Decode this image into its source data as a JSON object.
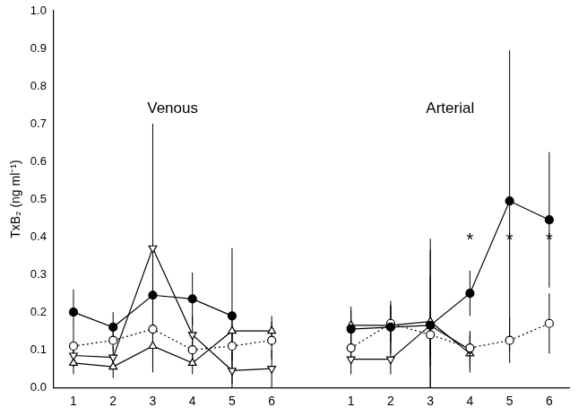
{
  "chart_data": {
    "type": "line",
    "y_label": "TxB₂ (ng ml⁻¹)",
    "categories": [
      "1",
      "2",
      "3",
      "4",
      "5",
      "6",
      null,
      "1",
      "2",
      "3",
      "4",
      "5",
      "6"
    ],
    "ylim": [
      0,
      1
    ],
    "yticks": [
      {
        "value": 0,
        "label": "0.0"
      },
      0.1,
      0.2,
      0.3,
      0.4,
      0.5,
      0.6,
      0.7,
      0.8,
      0.9,
      {
        "value": 1,
        "label": "1.0"
      }
    ],
    "grid": false,
    "series": [
      {
        "color": "#000000",
        "marker": "circle",
        "line_style": "solid",
        "values": [
          0.2,
          0.16,
          0.245,
          0.235,
          0.19,
          null,
          null,
          0.155,
          0.16,
          0.165,
          0.25,
          0.495,
          0.445
        ],
        "errors": [
          0.06,
          0.04,
          0.1,
          0.07,
          0.18,
          null,
          null,
          0.05,
          0.07,
          0.23,
          0.06,
          0.4,
          0.18
        ]
      },
      {
        "color": "#000000",
        "marker": "open_circle",
        "line_style": "dotted",
        "values": [
          0.11,
          0.125,
          0.155,
          0.1,
          0.11,
          0.125,
          null,
          0.105,
          0.17,
          0.14,
          0.105,
          0.125,
          0.17
        ],
        "errors": [
          0.03,
          0.03,
          0.06,
          0.03,
          0.04,
          0.05,
          null,
          0.04,
          0.05,
          0.06,
          0.04,
          0.06,
          0.08
        ]
      },
      {
        "color": "#000000",
        "marker": "open_triangle_down",
        "line_style": "solid",
        "values": [
          0.085,
          0.08,
          0.37,
          0.14,
          0.045,
          0.05,
          null,
          0.075,
          0.075,
          0.165,
          0.1,
          null,
          null
        ],
        "errors": [
          0.03,
          0.03,
          0.33,
          0.05,
          0.05,
          0.05,
          null,
          0.04,
          0.04,
          0.2,
          0.05,
          null,
          null
        ]
      },
      {
        "color": "#000000",
        "marker": "open_triangle_up",
        "line_style": "solid",
        "values": [
          0.065,
          0.055,
          0.11,
          0.065,
          0.15,
          0.15,
          null,
          0.165,
          0.165,
          0.175,
          0.09,
          null,
          null
        ],
        "errors": [
          0.03,
          0.03,
          0.06,
          0.03,
          0.05,
          0.04,
          null,
          0.05,
          0.05,
          0.12,
          0.05,
          null,
          null
        ]
      }
    ],
    "annotations": [
      {
        "text": "Venous",
        "index": 2.5,
        "y": 0.74
      },
      {
        "text": "Arterial",
        "index": 9.5,
        "y": 0.74
      },
      {
        "text": "*",
        "index": 10,
        "y": 0.39
      },
      {
        "text": "*",
        "index": 11,
        "y": 0.39
      },
      {
        "text": "*",
        "index": 12,
        "y": 0.39
      }
    ]
  }
}
